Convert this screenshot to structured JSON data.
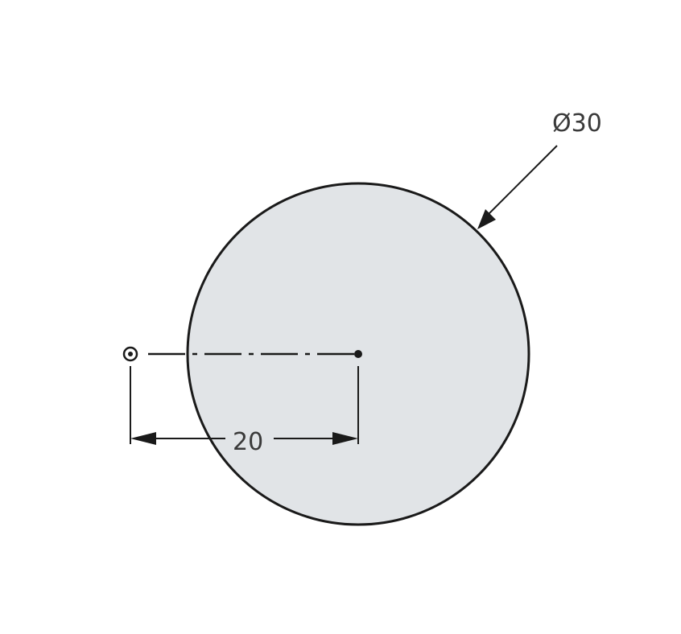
{
  "diagram": {
    "diameter_label": "Ø30",
    "linear_label": "20"
  },
  "colors": {
    "circle_fill": "#e1e4e7",
    "stroke": "#1a1a1a",
    "text": "#3a3a3a",
    "label_background": "#ffffff"
  }
}
